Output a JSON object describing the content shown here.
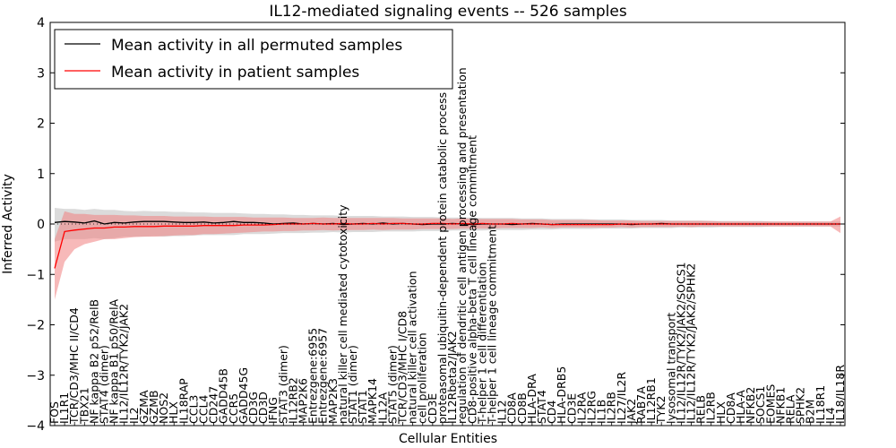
{
  "chart_data": {
    "type": "line",
    "title": "IL12-mediated signaling events -- 526 samples",
    "xlabel": "Cellular Entities",
    "ylabel": "Inferred Activity",
    "ylim": [
      -4,
      4
    ],
    "yticks": [
      "−4",
      "−3",
      "−2",
      "−1",
      "0",
      "1",
      "2",
      "3",
      "4"
    ],
    "legend_position": "top-left",
    "categories": [
      "FOS",
      "IL1R1",
      "TCR/CD3/MHC II/CD4",
      "TBX21",
      "NF kappa B2 p52/RelB",
      "STAT4 (dimer)",
      "NF kappa B1 p50/RelA",
      "IL12/IL12R/TYK2/JAK2",
      "IL2",
      "GZMA",
      "GZMB",
      "NOS2",
      "HLX",
      "IL18RAP",
      "CCL3",
      "CCL4",
      "CD247",
      "GADD45B",
      "CCR5",
      "GADD45G",
      "CD3G",
      "CD3D",
      "IFNG",
      "STAT3 (dimer)",
      "IL12RB2",
      "MAP2K6",
      "Entrezgene:6955",
      "Entrezgene:6957",
      "MAP2K3",
      "natural killer cell mediated cytotoxicity",
      "STAT1 (dimer)",
      "STAT1",
      "MAPK14",
      "IL12A",
      "STAT5 (dimer)",
      "TCR/CD3/MHC I/CD8",
      "natural killer cell activation",
      "cell proliferation",
      "CD3E",
      "proteasomal ubiquitin-dependent protein catabolic process",
      "IL12Rbeta2/JAK2",
      "regulation of dendritic cell antigen processing and presentation",
      "CD8-positive alpha-beta T cell lineage commitment",
      "T-helper 1 cell differentiation",
      "T-helper 1 cell lineage commitment",
      "IL12",
      "CD8A",
      "CD8B",
      "HLA-DRA",
      "STAT4",
      "CD4",
      "HLA-DRB5",
      "CD3E",
      "IL2RA",
      "IL2RG",
      "IL1B",
      "IL2RB",
      "IL27/IL2R",
      "JAK2",
      "RAB7A",
      "IL12RB1",
      "TYK2",
      "lysosomal transport",
      "IL12/IL12R/TYK2/JAK2/SOCS1",
      "IL12/IL12R/TYK2/JAK2/SPHK2",
      "RELB",
      "IL2RB",
      "HLX",
      "CD8A",
      "HLA-A",
      "NFKB2",
      "SOCS1",
      "EOMES",
      "NFKB1",
      "RELA",
      "SPHK2",
      "B2M",
      "IL18R1",
      "IL4",
      "IL18/IL18R"
    ],
    "series": [
      {
        "name": "Mean activity in all permuted samples",
        "color": "#000000",
        "band_color": "#b0b0b0",
        "values": [
          0.03,
          0.05,
          0.04,
          0.02,
          0.06,
          0.0,
          0.03,
          0.02,
          0.04,
          0.05,
          0.05,
          0.05,
          0.04,
          0.03,
          0.03,
          0.04,
          0.02,
          0.03,
          0.05,
          0.03,
          0.03,
          0.02,
          0.0,
          0.01,
          0.02,
          0.0,
          0.01,
          0.0,
          0.01,
          -0.01,
          0.0,
          0.01,
          0.0,
          0.02,
          0.0,
          0.01,
          0.0,
          -0.01,
          0.0,
          0.0,
          0.01,
          0.0,
          -0.01,
          0.0,
          0.0,
          0.0,
          -0.01,
          0.0,
          0.01,
          0.0,
          -0.01,
          0.0,
          0.0,
          0.0,
          0.0,
          0.0,
          0.0,
          0.0,
          -0.01,
          0.0,
          0.0,
          0.01,
          0.0,
          0.0,
          0.0,
          0.0,
          0.0,
          0.0,
          0.0,
          0.0,
          0.0,
          0.0,
          0.0,
          0.0,
          0.0,
          0.0,
          0.0,
          0.0,
          0.0,
          0.0
        ],
        "lower": [
          -0.35,
          -0.3,
          -0.3,
          -0.3,
          -0.28,
          -0.3,
          -0.28,
          -0.25,
          -0.25,
          -0.25,
          -0.24,
          -0.25,
          -0.24,
          -0.24,
          -0.23,
          -0.22,
          -0.22,
          -0.22,
          -0.22,
          -0.2,
          -0.2,
          -0.2,
          -0.19,
          -0.18,
          -0.18,
          -0.18,
          -0.17,
          -0.17,
          -0.16,
          -0.17,
          -0.16,
          -0.16,
          -0.16,
          -0.15,
          -0.15,
          -0.15,
          -0.15,
          -0.14,
          -0.14,
          -0.14,
          -0.13,
          -0.13,
          -0.13,
          -0.13,
          -0.12,
          -0.12,
          -0.12,
          -0.12,
          -0.11,
          -0.11,
          -0.11,
          -0.1,
          -0.1,
          -0.1,
          -0.1,
          -0.09,
          -0.09,
          -0.09,
          -0.09,
          -0.08,
          -0.08,
          -0.08,
          -0.08,
          -0.07,
          -0.07,
          -0.07,
          -0.07,
          -0.06,
          -0.06,
          -0.06,
          -0.06,
          -0.06,
          -0.05,
          -0.05,
          -0.05,
          -0.05,
          -0.05,
          -0.05,
          -0.05,
          -0.05
        ],
        "upper": [
          0.32,
          0.3,
          0.3,
          0.28,
          0.3,
          0.28,
          0.28,
          0.26,
          0.25,
          0.26,
          0.25,
          0.25,
          0.24,
          0.24,
          0.23,
          0.23,
          0.22,
          0.22,
          0.22,
          0.21,
          0.2,
          0.2,
          0.19,
          0.19,
          0.18,
          0.18,
          0.17,
          0.17,
          0.17,
          0.16,
          0.16,
          0.16,
          0.16,
          0.15,
          0.15,
          0.15,
          0.14,
          0.14,
          0.14,
          0.13,
          0.13,
          0.13,
          0.13,
          0.12,
          0.12,
          0.12,
          0.12,
          0.11,
          0.11,
          0.11,
          0.1,
          0.1,
          0.1,
          0.1,
          0.09,
          0.09,
          0.09,
          0.09,
          0.08,
          0.08,
          0.08,
          0.08,
          0.07,
          0.07,
          0.07,
          0.07,
          0.06,
          0.06,
          0.06,
          0.06,
          0.06,
          0.06,
          0.05,
          0.05,
          0.05,
          0.05,
          0.05,
          0.05,
          0.05,
          0.05
        ]
      },
      {
        "name": "Mean activity in patient samples",
        "color": "#ff0000",
        "band_color": "#f08080",
        "values": [
          -0.88,
          -0.15,
          -0.12,
          -0.1,
          -0.08,
          -0.08,
          -0.06,
          -0.06,
          -0.05,
          -0.05,
          -0.05,
          -0.04,
          -0.04,
          -0.04,
          -0.04,
          -0.03,
          -0.03,
          -0.03,
          -0.03,
          -0.02,
          -0.02,
          -0.02,
          -0.01,
          0.0,
          0.0,
          0.0,
          0.01,
          0.0,
          0.0,
          0.01,
          0.0,
          0.0,
          0.01,
          0.0,
          0.01,
          0.01,
          0.0,
          0.0,
          0.01,
          0.01,
          0.0,
          0.01,
          0.0,
          0.01,
          0.0,
          0.0,
          0.01,
          0.0,
          0.0,
          0.0,
          -0.01,
          -0.01,
          -0.01,
          -0.01,
          -0.01,
          -0.01,
          -0.01,
          0.0,
          0.0,
          0.0,
          0.0,
          0.0,
          0.0,
          0.0,
          0.0,
          0.0,
          0.0,
          0.0,
          0.0,
          0.0,
          0.0,
          0.0,
          0.0,
          0.0,
          0.0,
          0.0,
          0.0,
          0.0,
          0.0,
          0.0
        ],
        "lower": [
          -1.5,
          -0.75,
          -0.5,
          -0.4,
          -0.35,
          -0.3,
          -0.3,
          -0.28,
          -0.26,
          -0.25,
          -0.25,
          -0.24,
          -0.23,
          -0.22,
          -0.22,
          -0.2,
          -0.2,
          -0.19,
          -0.18,
          -0.17,
          -0.16,
          -0.15,
          -0.15,
          -0.14,
          -0.14,
          -0.13,
          -0.13,
          -0.12,
          -0.13,
          -0.12,
          -0.12,
          -0.12,
          -0.11,
          -0.12,
          -0.11,
          -0.11,
          -0.11,
          -0.1,
          -0.1,
          -0.1,
          -0.1,
          -0.09,
          -0.09,
          -0.09,
          -0.09,
          -0.08,
          -0.08,
          -0.08,
          -0.08,
          -0.07,
          -0.08,
          -0.07,
          -0.07,
          -0.07,
          -0.07,
          -0.07,
          -0.07,
          -0.06,
          -0.07,
          -0.06,
          -0.06,
          -0.06,
          -0.06,
          -0.05,
          -0.06,
          -0.05,
          -0.05,
          -0.05,
          -0.05,
          -0.05,
          -0.05,
          -0.05,
          -0.05,
          -0.05,
          -0.05,
          -0.05,
          -0.05,
          -0.05,
          -0.05,
          -0.18
        ],
        "upper": [
          -0.3,
          0.25,
          0.2,
          0.2,
          0.18,
          0.18,
          0.18,
          0.17,
          0.17,
          0.16,
          0.16,
          0.16,
          0.15,
          0.15,
          0.15,
          0.15,
          0.14,
          0.14,
          0.14,
          0.14,
          0.13,
          0.13,
          0.13,
          0.13,
          0.12,
          0.12,
          0.12,
          0.13,
          0.12,
          0.12,
          0.12,
          0.12,
          0.12,
          0.12,
          0.12,
          0.11,
          0.11,
          0.11,
          0.11,
          0.11,
          0.1,
          0.11,
          0.1,
          0.1,
          0.1,
          0.1,
          0.1,
          0.09,
          0.09,
          0.09,
          0.08,
          0.08,
          0.08,
          0.08,
          0.08,
          0.07,
          0.07,
          0.07,
          0.07,
          0.06,
          0.06,
          0.06,
          0.06,
          0.06,
          0.06,
          0.06,
          0.06,
          0.05,
          0.05,
          0.05,
          0.05,
          0.05,
          0.05,
          0.05,
          0.05,
          0.05,
          0.05,
          0.05,
          0.05,
          0.15
        ]
      }
    ]
  }
}
